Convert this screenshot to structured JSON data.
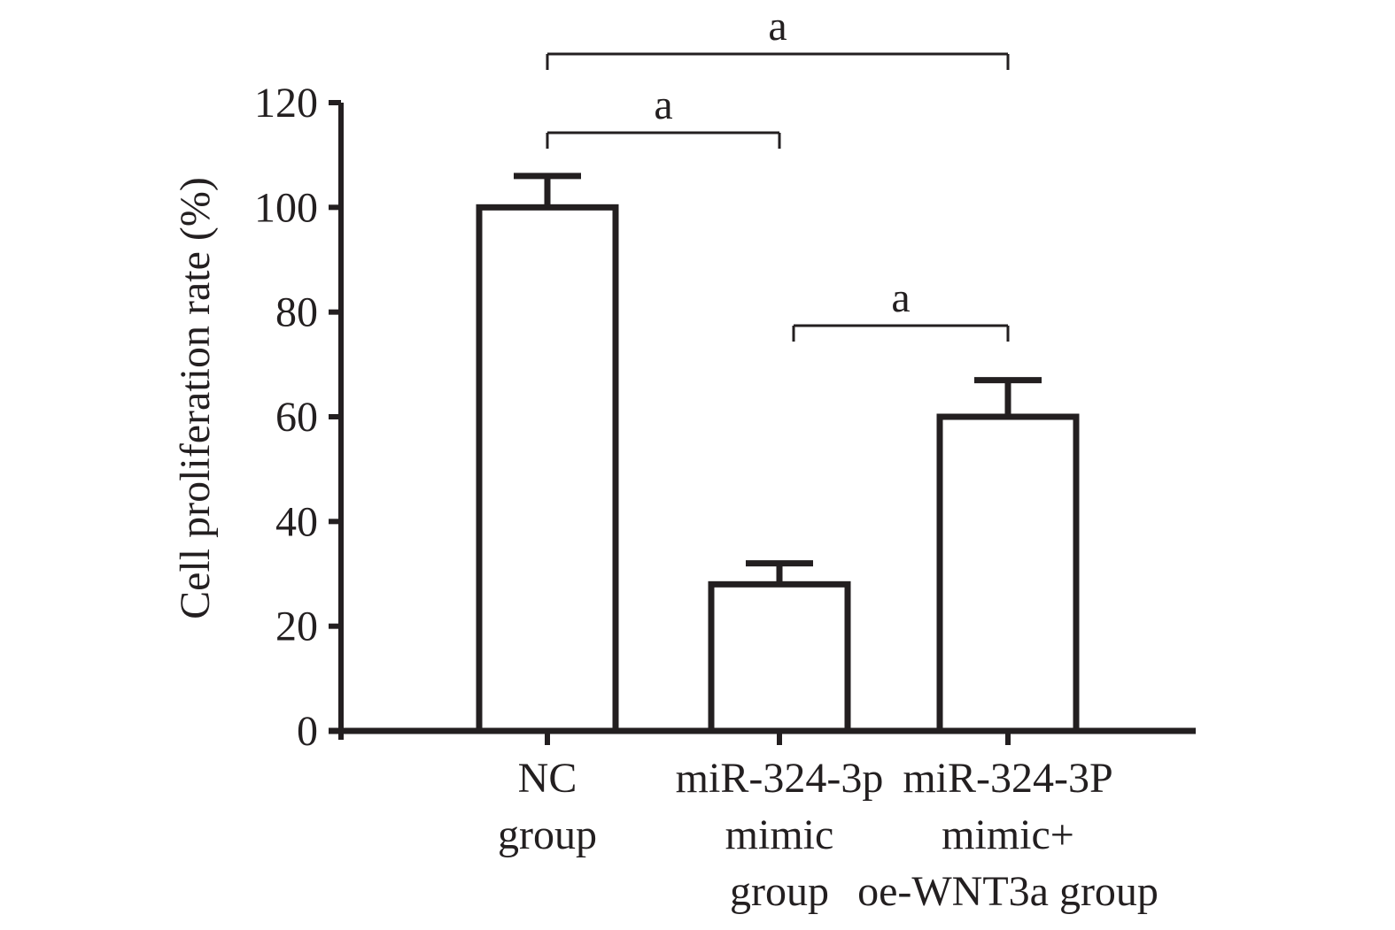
{
  "chart_data": {
    "type": "bar",
    "categories": [
      [
        "NC",
        "group"
      ],
      [
        "miR-324-3p",
        "mimic",
        "group"
      ],
      [
        "miR-324-3P",
        "mimic+",
        "oe-WNT3a group"
      ]
    ],
    "values": [
      100,
      28,
      60
    ],
    "errors": [
      6,
      4,
      7
    ],
    "ylabel": "Cell proliferation rate (%)",
    "ylim": [
      0,
      120
    ],
    "yticks": [
      0,
      20,
      40,
      60,
      80,
      100,
      120
    ],
    "grid": false,
    "significance": [
      {
        "from": 0,
        "to": 2,
        "label": "a"
      },
      {
        "from": 0,
        "to": 1,
        "label": "a"
      },
      {
        "from": 1,
        "to": 2,
        "label": "a"
      }
    ],
    "colors": {
      "bar_fill": "#ffffff",
      "stroke": "#231f20"
    }
  }
}
